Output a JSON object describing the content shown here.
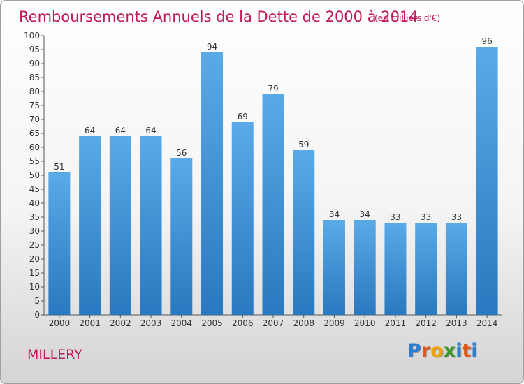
{
  "chart_data": {
    "type": "bar",
    "title": "Remboursements Annuels de la Dette de 2000 à 2014",
    "subtitle": "(en milliers d'€)",
    "categories": [
      "2000",
      "2001",
      "2002",
      "2003",
      "2004",
      "2005",
      "2006",
      "2007",
      "2008",
      "2009",
      "2010",
      "2011",
      "2012",
      "2013",
      "2014"
    ],
    "values": [
      51,
      64,
      64,
      64,
      56,
      94,
      69,
      79,
      59,
      34,
      34,
      33,
      33,
      33,
      96
    ],
    "ylim": [
      0,
      100
    ],
    "ytick_step": 5,
    "grid": false,
    "bar_color": "#3d8fd6",
    "title_color": "#c2185b"
  },
  "location_label": "MILLERY",
  "logo": {
    "letters": [
      "P",
      "r",
      "o",
      "x",
      "i",
      "t",
      "i"
    ],
    "colors": [
      "#2b7fd0",
      "#e2561c",
      "#f3a000",
      "#3c9a2c",
      "#2b7fd0",
      "#e2561c",
      "#2b7fd0"
    ]
  }
}
